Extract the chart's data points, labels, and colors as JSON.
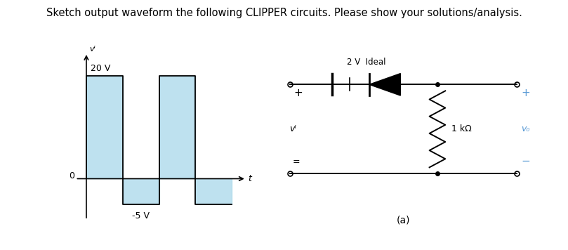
{
  "title": "Sketch output waveform the following CLIPPER circuits. Please show your solutions/analysis.",
  "title_color": "#000000",
  "title_fontsize": 10.5,
  "bg_color": "#ffffff",
  "waveform": {
    "x_values": [
      0,
      0,
      1,
      1,
      2,
      2,
      3,
      3,
      4
    ],
    "y_values": [
      0,
      20,
      20,
      -5,
      -5,
      20,
      20,
      -5,
      -5
    ],
    "fill_color": "#a8d8ea",
    "line_color": "#000000",
    "fill_alpha": 0.75,
    "label_20v": "20 V",
    "label_neg5v": "-5 V",
    "label_vi": "vᴵ",
    "label_t": "t",
    "label_0": "0",
    "ylim": [
      -9,
      26
    ],
    "xlim": [
      -0.5,
      4.5
    ]
  },
  "circuit": {
    "label_2v_ideal": "2 V  Ideal",
    "label_vi": "vᴵ",
    "label_1kohm": "1 kΩ",
    "label_vo": "v₀",
    "label_plus_left": "+",
    "label_minus_left": "=",
    "label_plus_right": "+",
    "label_minus_right": "−",
    "label_a": "(a)",
    "color_black": "#000000",
    "color_blue": "#5b9bd5",
    "color_gray": "#555555"
  }
}
